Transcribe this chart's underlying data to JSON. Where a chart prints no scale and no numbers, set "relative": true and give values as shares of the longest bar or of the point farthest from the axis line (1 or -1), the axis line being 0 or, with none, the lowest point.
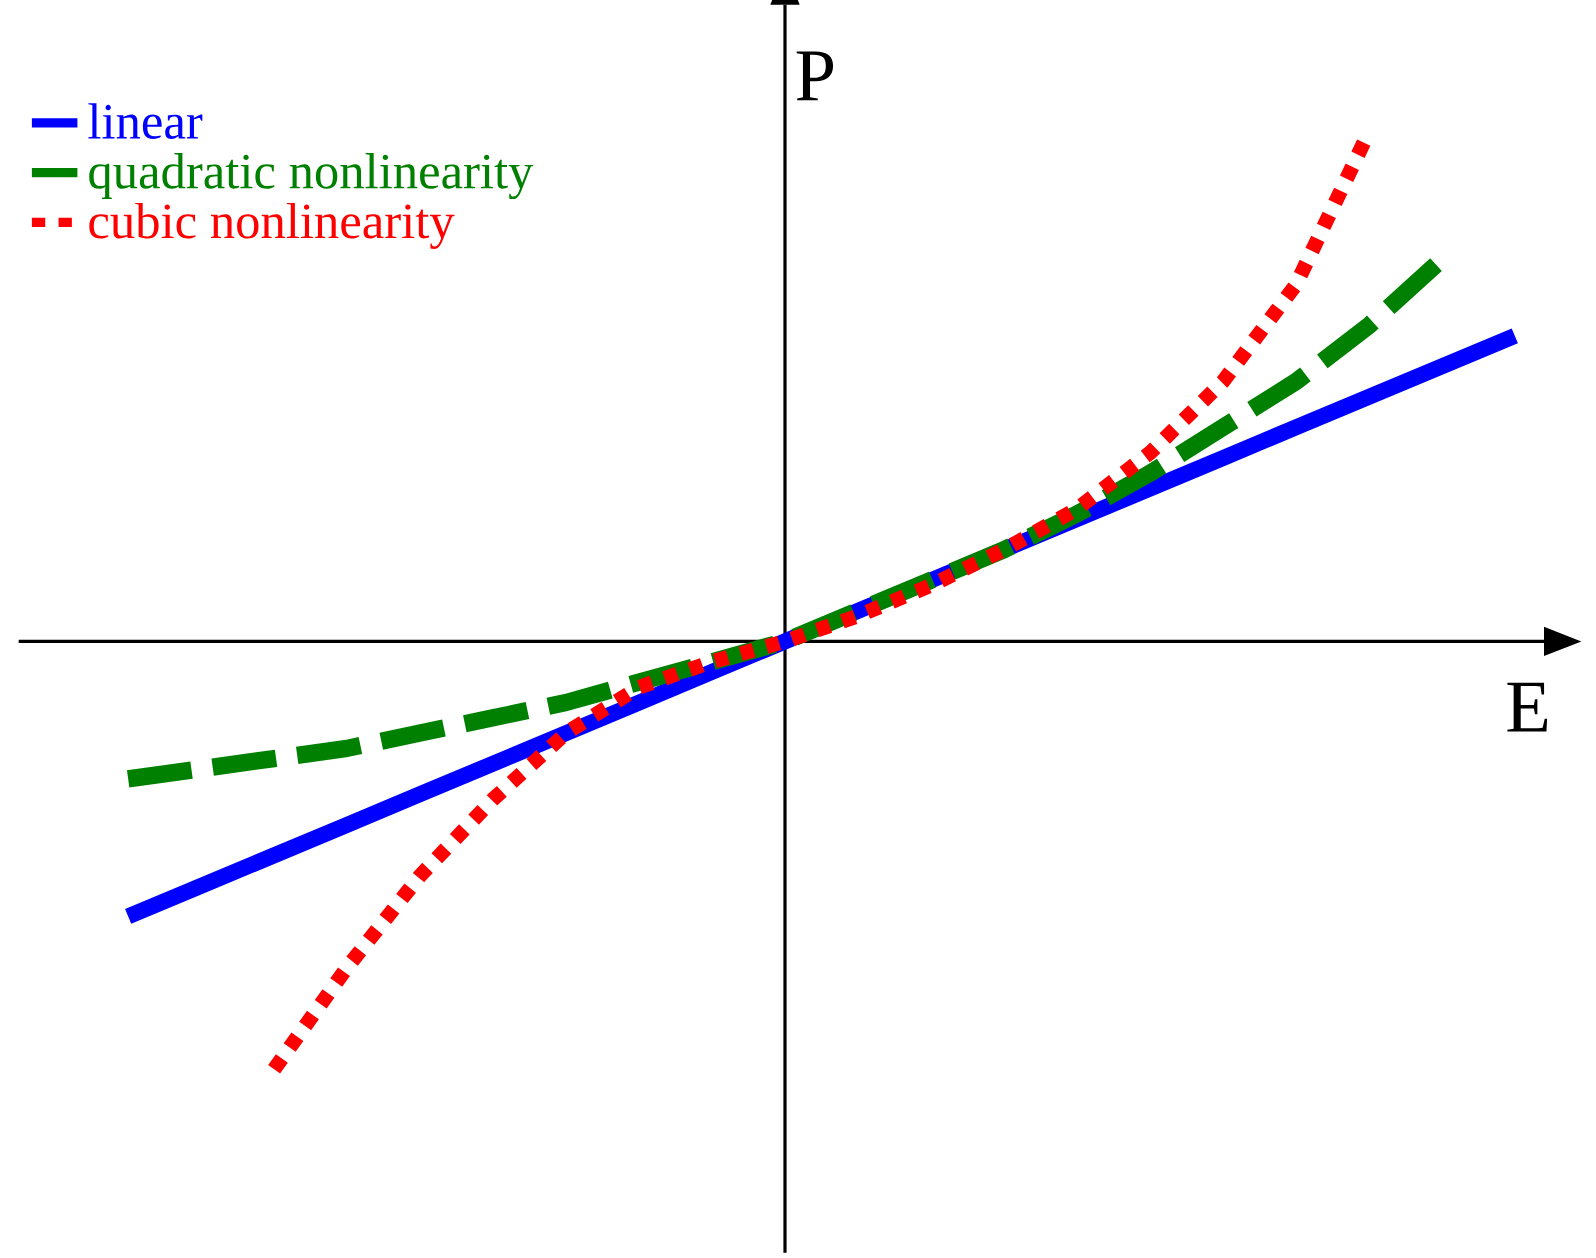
{
  "chart_data": {
    "type": "line",
    "relative": true,
    "xlabel": "E",
    "ylabel": "P",
    "legend": "top left",
    "categories": [
      null,
      null,
      null,
      null,
      null,
      null,
      null,
      null,
      null,
      null,
      null,
      null,
      null,
      null,
      null,
      null,
      null,
      null,
      null,
      null,
      null
    ],
    "series": [
      {
        "name": "linear",
        "color": "#0000ff",
        "line_style": "solid",
        "values": [
          null,
          -0.54,
          -0.48,
          -0.42,
          -0.36,
          -0.3,
          -0.24,
          -0.18,
          -0.12,
          -0.06,
          0,
          0.06,
          0.12,
          0.18,
          0.24,
          0.3,
          0.36,
          0.42,
          0.48,
          0.54,
          0.6
        ]
      },
      {
        "name": "quadratic nonlinearity",
        "color": "#008000",
        "line_style": "dashed",
        "values": [
          null,
          -0.27,
          -0.25,
          -0.23,
          -0.21,
          -0.18,
          -0.15,
          -0.12,
          -0.08,
          -0.04,
          0,
          0.06,
          0.12,
          0.18,
          0.25,
          0.33,
          0.42,
          0.51,
          0.62,
          0.75,
          null
        ]
      },
      {
        "name": "cubic nonlinearity",
        "color": "#ff0000",
        "line_style": "dotted",
        "values": [
          null,
          null,
          null,
          -0.84,
          -0.64,
          -0.46,
          -0.31,
          -0.18,
          -0.09,
          -0.04,
          0,
          0.05,
          0.11,
          0.18,
          0.26,
          0.37,
          0.51,
          0.7,
          1.0,
          null,
          null
        ]
      }
    ]
  }
}
